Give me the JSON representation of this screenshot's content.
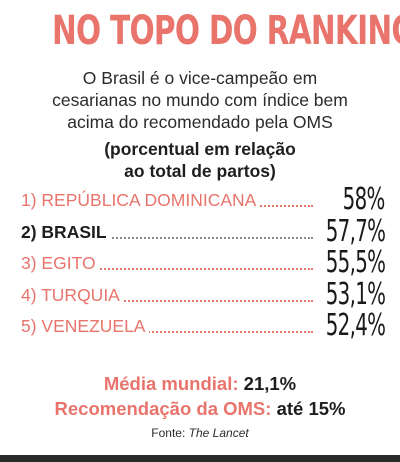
{
  "title": "NO TOPO DO RANKING",
  "subtitle_lines": [
    "O Brasil é o vice-campeão em",
    "cesarianas no mundo com índice bem",
    "acima do recomendado pela OMS"
  ],
  "unit_lines": [
    "(porcentual em relação",
    "ao total de partos)"
  ],
  "colors": {
    "accent": "#e8746c",
    "text": "#231f20",
    "bottom_bar": "#2a2a2a"
  },
  "chart_data": {
    "type": "table",
    "title": "NO TOPO DO RANKING",
    "rows": [
      {
        "label": "1) REPÚBLICA DOMINICANA",
        "value": 58,
        "display": "58%",
        "highlight": false
      },
      {
        "label": "2) BRASIL",
        "value": 57.7,
        "display": "57,7%",
        "highlight": true
      },
      {
        "label": "3) EGITO",
        "value": 55.5,
        "display": "55,5%",
        "highlight": false
      },
      {
        "label": "4) TURQUIA",
        "value": 53.1,
        "display": "53,1%",
        "highlight": false
      },
      {
        "label": "5) VENEZUELA",
        "value": 52.4,
        "display": "52,4%",
        "highlight": false
      }
    ]
  },
  "stats": [
    {
      "label": "Média mundial:",
      "value": "21,1%"
    },
    {
      "label": "Recomendação da OMS:",
      "value": "até 15%"
    }
  ],
  "source": {
    "prefix": "Fonte:",
    "name": "The Lancet"
  }
}
